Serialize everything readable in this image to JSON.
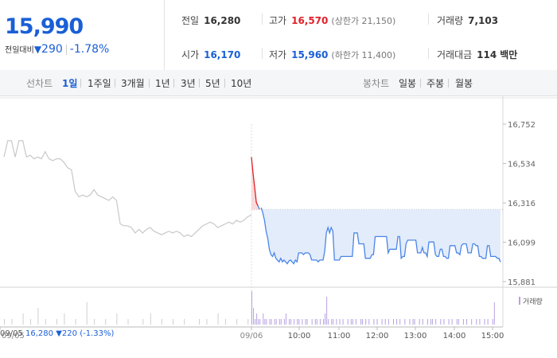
{
  "header": {
    "price": "15,990",
    "change_label": "전일대비",
    "change_arrow": "▼",
    "change_value": "290",
    "change_pct": "-1.78%",
    "stats": {
      "prev_close": {
        "label": "전일",
        "value": "16,280"
      },
      "open": {
        "label": "시가",
        "value": "16,170"
      },
      "high": {
        "label": "고가",
        "value": "16,570",
        "sub": "(상한가 21,150)"
      },
      "low": {
        "label": "저가",
        "value": "15,960",
        "sub": "(하한가 11,400)"
      },
      "volume": {
        "label": "거래량",
        "value": "7,103"
      },
      "amount": {
        "label": "거래대금",
        "value": "114",
        "unit": "백만"
      }
    }
  },
  "toolbar": {
    "line_label": "선차트",
    "periods": [
      "1일",
      "1주일",
      "3개월",
      "1년",
      "3년",
      "5년",
      "10년"
    ],
    "active_period": "1일",
    "candle_label": "봉차트",
    "candles": [
      "일봉",
      "주봉",
      "월봉"
    ]
  },
  "prev_day_info": {
    "date": "09/05",
    "price": "16,280",
    "arrow": "▼",
    "change": "220",
    "pct": "(-1.33%)"
  },
  "colors": {
    "blue": "#1a5fd6",
    "red": "#e0202a",
    "line_prev": "#c8c8c8",
    "line_today": "#4a86e8",
    "fill_today": "#e3ecfa",
    "fill_up": "#fbdada",
    "vol_bar": "#b7a2e0"
  },
  "chart_data": {
    "type": "line",
    "y_ticks": [
      "16,752",
      "16,534",
      "16,316",
      "16,099",
      "15,881"
    ],
    "y_tick_values": [
      16752,
      16534,
      16316,
      16099,
      15881
    ],
    "ylim": [
      15881,
      16752
    ],
    "reference_price": 16280,
    "x_labels": [
      "09/05",
      "09/06",
      "10:00",
      "11:00",
      "12:00",
      "13:00",
      "14:00",
      "15:00"
    ],
    "volume_label": "거래량",
    "prev_day": [
      16570,
      16660,
      16660,
      16570,
      16660,
      16660,
      16570,
      16580,
      16560,
      16570,
      16560,
      16600,
      16560,
      16550,
      16560,
      16560,
      16540,
      16510,
      16500,
      16380,
      16350,
      16360,
      16350,
      16360,
      16390,
      16360,
      16350,
      16340,
      16330,
      16350,
      16330,
      16200,
      16190,
      16190,
      16180,
      16150,
      16170,
      16150,
      16170,
      16180,
      16160,
      16150,
      16140,
      16150,
      16160,
      16150,
      16160,
      16150,
      16130,
      16140,
      16130,
      16150,
      16170,
      16190,
      16200,
      16210,
      16200,
      16180,
      16190,
      16200,
      16210,
      16200,
      16220,
      16210,
      16220,
      16240,
      16250
    ],
    "today": [
      16570,
      16480,
      16400,
      16320,
      16300,
      16280,
      16290,
      16260,
      16220,
      16160,
      16120,
      16060,
      16030,
      16020,
      16040,
      16010,
      16000,
      15990,
      16010,
      15990,
      16000,
      15990,
      15980,
      15995,
      16000,
      15990,
      15980,
      16000,
      15990,
      16040,
      16040,
      16040,
      16030,
      16040,
      16040,
      16040,
      16030,
      16000,
      16000,
      16000,
      16000,
      15990,
      16000,
      16000,
      16000,
      16050,
      16150,
      16180,
      16150,
      16180,
      16160,
      16000,
      16000,
      16000,
      16000,
      16020,
      16020,
      16020,
      16020,
      16020,
      16020,
      16020,
      16020,
      16150,
      16150,
      16150,
      16090,
      16090,
      16090,
      16090,
      16010,
      16010,
      16010,
      16010,
      16030,
      16030,
      16130,
      16130,
      16130,
      16130,
      16130,
      16130,
      16130,
      16130,
      16040,
      16060,
      16060,
      16060,
      16060,
      16060,
      16130,
      16130,
      16010,
      16020,
      16020,
      16090,
      16110,
      16110,
      16110,
      16110,
      16110,
      16110,
      16040,
      16040,
      16040,
      16070,
      16040,
      16040,
      16020,
      16100,
      16100,
      16100,
      16100,
      16030,
      16020,
      16020,
      16060,
      16060,
      16020,
      16020,
      16010,
      16010,
      16080,
      16080,
      16080,
      16080,
      16040,
      16040,
      16030,
      16080,
      16090,
      16090,
      16090,
      16040,
      16040,
      16040,
      16090,
      16090,
      16080,
      16080,
      16020,
      16020,
      16010,
      16010,
      16010,
      16080,
      16080,
      16020,
      16020,
      16020,
      16020,
      16010,
      16010,
      15990
    ],
    "volume_prev": [
      1,
      0,
      1,
      0,
      0,
      2,
      0,
      1,
      0,
      3,
      0,
      1,
      0,
      0,
      1,
      0,
      2,
      0,
      0,
      1,
      0,
      0,
      4,
      0,
      1,
      0,
      0,
      1,
      0,
      0,
      2,
      0,
      0,
      1,
      0,
      0,
      0,
      1,
      0,
      2,
      0,
      0,
      1,
      0,
      0,
      1,
      0,
      0,
      1,
      0,
      0,
      0,
      1,
      0,
      1,
      0,
      0,
      2,
      0,
      1,
      0,
      0,
      1,
      0,
      0,
      1,
      1
    ],
    "volume_today": [
      6,
      3,
      1,
      2,
      1,
      1,
      0,
      2,
      1,
      1,
      0,
      1,
      1,
      0,
      1,
      1,
      0,
      1,
      1,
      0,
      1,
      2,
      0,
      1,
      1,
      0,
      1,
      0,
      1,
      1,
      0,
      1,
      0,
      1,
      1,
      0,
      0,
      1,
      0,
      1,
      1,
      0,
      1,
      0,
      1,
      2,
      5,
      1,
      0,
      1,
      1,
      0,
      1,
      0,
      1,
      0,
      1,
      0,
      0,
      1,
      0,
      1,
      1,
      0,
      1,
      0,
      0,
      1,
      1,
      0,
      1,
      0,
      1,
      0,
      0,
      1,
      0,
      1,
      0,
      0,
      1,
      0,
      1,
      0,
      1,
      0,
      0,
      1,
      0,
      1,
      0,
      1,
      0,
      0,
      1,
      0,
      0,
      1,
      0,
      1,
      1,
      0,
      0,
      1,
      0,
      1,
      0,
      0,
      1,
      0,
      1,
      1,
      0,
      1,
      0,
      0,
      1,
      0,
      1,
      0,
      0,
      1,
      0,
      1,
      0,
      0,
      1,
      1,
      0,
      0,
      1,
      0,
      1,
      0,
      0,
      1,
      0,
      0,
      1,
      0,
      1,
      0,
      0,
      1,
      0,
      1,
      0,
      0,
      1,
      4
    ]
  }
}
